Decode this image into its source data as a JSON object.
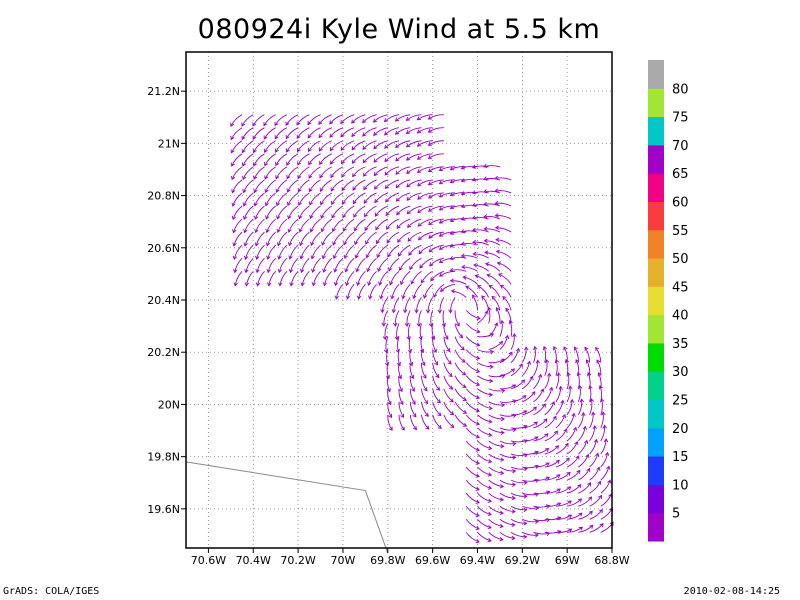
{
  "title": "080924i Kyle Wind at 5.5 km",
  "footer": {
    "left": "GrADS: COLA/IGES",
    "right": "2010-02-08-14:25"
  },
  "chart_data": {
    "type": "vector-field",
    "title": "080924i Kyle Wind at 5.5 km",
    "xlim": [
      -70.7,
      -68.8
    ],
    "ylim": [
      19.45,
      21.35
    ],
    "x_ticks": [
      {
        "value": -70.6,
        "label": "70.6W"
      },
      {
        "value": -70.4,
        "label": "70.4W"
      },
      {
        "value": -70.2,
        "label": "70.2W"
      },
      {
        "value": -70.0,
        "label": "70W"
      },
      {
        "value": -69.8,
        "label": "69.8W"
      },
      {
        "value": -69.6,
        "label": "69.6W"
      },
      {
        "value": -69.4,
        "label": "69.4W"
      },
      {
        "value": -69.2,
        "label": "69.2W"
      },
      {
        "value": -69.0,
        "label": "69W"
      },
      {
        "value": -68.8,
        "label": "68.8W"
      }
    ],
    "y_ticks": [
      {
        "value": 19.6,
        "label": "19.6N"
      },
      {
        "value": 19.8,
        "label": "19.8N"
      },
      {
        "value": 20.0,
        "label": "20N"
      },
      {
        "value": 20.2,
        "label": "20.2N"
      },
      {
        "value": 20.4,
        "label": "20.4N"
      },
      {
        "value": 20.6,
        "label": "20.6N"
      },
      {
        "value": 20.8,
        "label": "20.8N"
      },
      {
        "value": 21.0,
        "label": "21N"
      },
      {
        "value": 21.2,
        "label": "21.2N"
      }
    ],
    "grid": true,
    "vector_color": "#9900cc",
    "coastline": [
      [
        -70.7,
        19.78
      ],
      [
        -69.9,
        19.67
      ],
      [
        -69.8,
        19.43
      ]
    ],
    "swaths": [
      {
        "lon_min": -70.5,
        "lon_max": -69.55,
        "lat_min": 20.5,
        "lat_max": 21.15
      },
      {
        "lon_min": -70.05,
        "lon_max": -69.25,
        "lat_min": 20.45,
        "lat_max": 20.95
      },
      {
        "lon_min": -69.85,
        "lon_max": -69.25,
        "lat_min": 19.95,
        "lat_max": 20.45
      },
      {
        "lon_min": -69.5,
        "lon_max": -68.85,
        "lat_min": 19.5,
        "lat_max": 20.2
      }
    ],
    "colorbar": {
      "labels": [
        "5",
        "10",
        "15",
        "20",
        "25",
        "30",
        "35",
        "40",
        "45",
        "50",
        "55",
        "60",
        "65",
        "70",
        "75",
        "80"
      ],
      "colors": [
        "#a000c8",
        "#7800dc",
        "#1e3cff",
        "#00a0ff",
        "#00c8c8",
        "#00d28c",
        "#00dc00",
        "#a0e632",
        "#e6dc32",
        "#e6af2d",
        "#f08228",
        "#fa3c3c",
        "#f00082",
        "#a000c8",
        "#00c8c8",
        "#a0e632",
        "#aaaaaa"
      ]
    }
  }
}
